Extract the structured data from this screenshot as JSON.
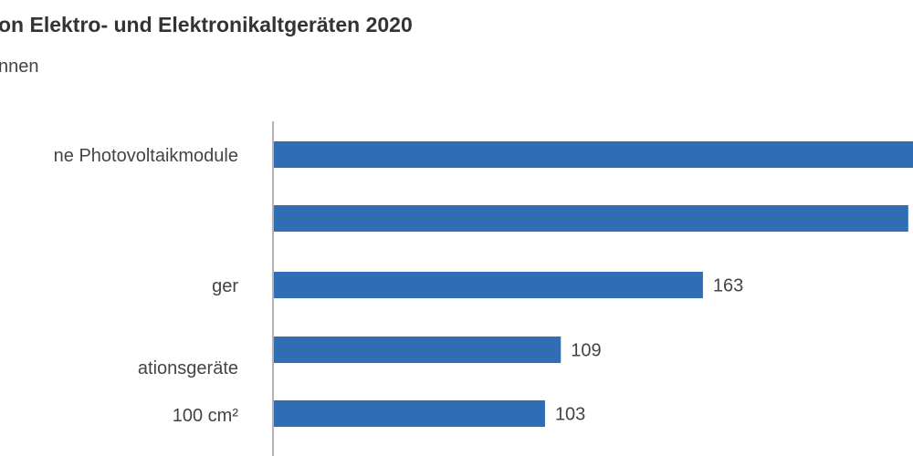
{
  "chart_data": {
    "type": "bar",
    "orientation": "horizontal",
    "title": "on Elektro- und Elektronikaltgeräten 2020",
    "subtitle": "nnen",
    "categories": [
      "ne Photovoltaikmodule",
      "",
      "ger",
      "ationsgeräte",
      "100 cm²"
    ],
    "values": [
      245,
      241,
      163,
      109,
      103
    ],
    "data_labels": [
      "",
      "",
      "163",
      "109",
      "103"
    ],
    "xlim": [
      0,
      243
    ],
    "grid": false,
    "bar_color": "#2f6eb5",
    "axis_color": "#999999"
  }
}
